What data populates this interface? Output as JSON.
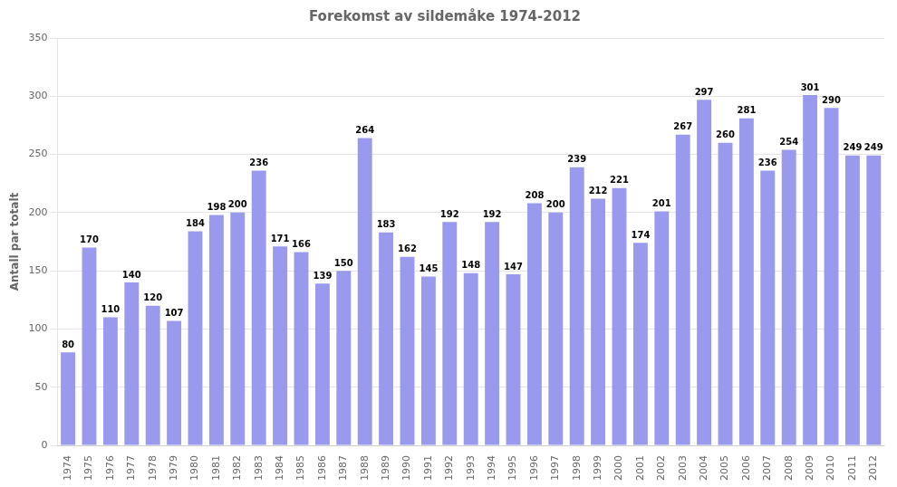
{
  "chart_data": {
    "type": "bar",
    "title": "Forekomst av sildemåke 1974-2012",
    "ylabel": "Antall par totalt",
    "categories": [
      "1974",
      "1975",
      "1976",
      "1977",
      "1978",
      "1979",
      "1980",
      "1981",
      "1982",
      "1983",
      "1984",
      "1985",
      "1986",
      "1987",
      "1988",
      "1989",
      "1990",
      "1991",
      "1992",
      "1993",
      "1994",
      "1995",
      "1996",
      "1997",
      "1998",
      "1999",
      "2000",
      "2001",
      "2002",
      "2003",
      "2004",
      "2005",
      "2006",
      "2007",
      "2008",
      "2009",
      "2010",
      "2011",
      "2012"
    ],
    "values": [
      80,
      170,
      110,
      140,
      120,
      107,
      184,
      198,
      200,
      236,
      171,
      166,
      139,
      150,
      264,
      183,
      162,
      145,
      192,
      148,
      192,
      147,
      208,
      200,
      239,
      212,
      221,
      174,
      201,
      267,
      297,
      260,
      281,
      236,
      254,
      301,
      290,
      249,
      249
    ],
    "color": "#9999ee",
    "ylim": [
      0,
      350
    ],
    "yticks": [
      0,
      50,
      100,
      150,
      200,
      250,
      300,
      350
    ],
    "grid": true,
    "data_labels": true
  }
}
